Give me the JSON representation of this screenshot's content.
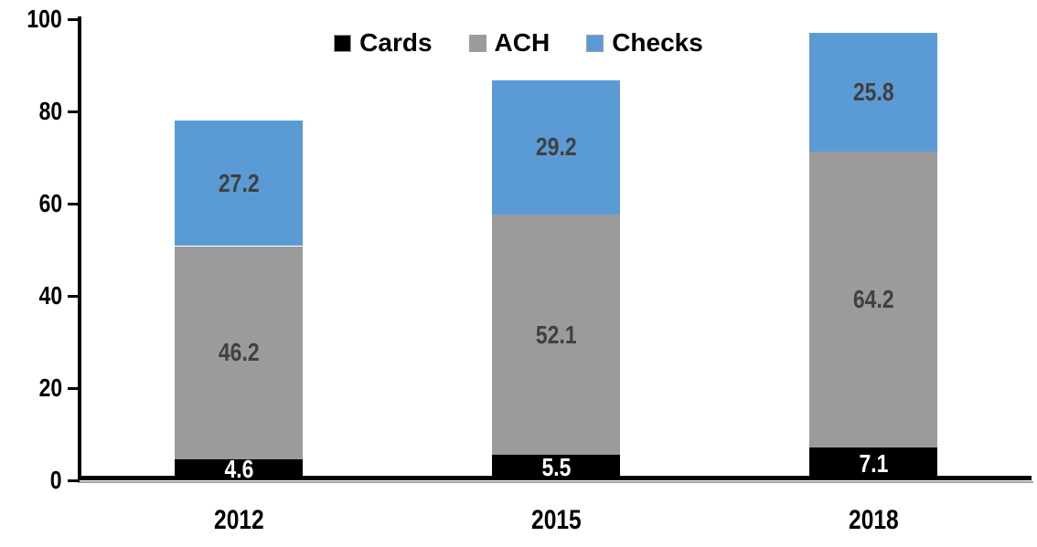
{
  "chart_data": {
    "type": "bar",
    "stacked": true,
    "title": "",
    "categories": [
      "2012",
      "2015",
      "2018"
    ],
    "series": [
      {
        "name": "Cards",
        "color": "#000000",
        "label_color": "#FFFFFF",
        "values": [
          4.6,
          5.5,
          7.1
        ]
      },
      {
        "name": "ACH",
        "color": "#9B9B9B",
        "label_color": "#404040",
        "values": [
          46.2,
          52.1,
          64.2
        ]
      },
      {
        "name": "Checks",
        "color": "#5B9BD5",
        "label_color": "#404040",
        "values": [
          27.2,
          29.2,
          25.8
        ]
      }
    ],
    "data_labels_shown": true,
    "y_ticks": [
      0,
      20,
      40,
      60,
      80,
      100
    ],
    "ylim": [
      0,
      100
    ],
    "legend_position": "top",
    "grid": false,
    "axis_color": "#000000",
    "axis_shadow_color": "#A3A3A3"
  }
}
